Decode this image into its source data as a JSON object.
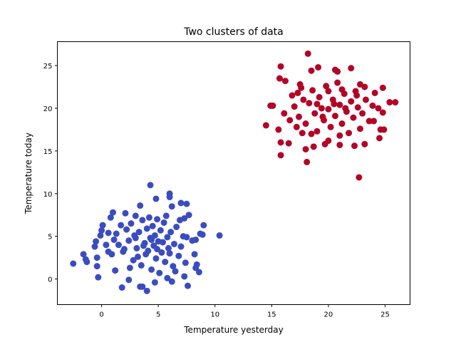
{
  "chart_data": {
    "type": "scatter",
    "title": "Two clusters of data",
    "xlabel": "Temperature yesterday",
    "ylabel": "Temperature today",
    "xlim": [
      -3.9,
      27.2
    ],
    "ylim": [
      -3.0,
      27.8
    ],
    "xticks": [
      0,
      5,
      10,
      15,
      20,
      25
    ],
    "yticks": [
      0,
      5,
      10,
      15,
      20,
      25
    ],
    "grid": false,
    "series": [
      {
        "color": "#3b4cc0",
        "points": [
          [
            -2.5,
            1.8
          ],
          [
            -1.6,
            2.9
          ],
          [
            -1.3,
            2.0
          ],
          [
            -1.4,
            2.3
          ],
          [
            -0.3,
            0.2
          ],
          [
            -0.4,
            1.5
          ],
          [
            -0.4,
            2.5
          ],
          [
            -0.6,
            3.8
          ],
          [
            -0.5,
            4.4
          ],
          [
            0.1,
            6.3
          ],
          [
            0.0,
            5.7
          ],
          [
            -0.1,
            5.1
          ],
          [
            0.6,
            3.2
          ],
          [
            0.9,
            2.9
          ],
          [
            1.0,
            7.8
          ],
          [
            0.8,
            7.2
          ],
          [
            1.2,
            1.0
          ],
          [
            1.8,
            -1.0
          ],
          [
            2.1,
            7.7
          ],
          [
            2.4,
            -0.1
          ],
          [
            3.4,
            8.6
          ],
          [
            4.3,
            11.0
          ],
          [
            4.8,
            9.4
          ],
          [
            6.0,
            10.0
          ],
          [
            6.0,
            9.6
          ],
          [
            6.2,
            8.5
          ],
          [
            7.0,
            8.9
          ],
          [
            7.5,
            8.8
          ],
          [
            7.7,
            7.5
          ],
          [
            7.3,
            7.1
          ],
          [
            6.9,
            6.9
          ],
          [
            9.0,
            6.3
          ],
          [
            8.9,
            5.2
          ],
          [
            8.7,
            5.3
          ],
          [
            10.4,
            5.1
          ],
          [
            8.3,
            4.6
          ],
          [
            8.0,
            4.5
          ],
          [
            7.5,
            4.9
          ],
          [
            8.2,
            2.9
          ],
          [
            8.4,
            1.7
          ],
          [
            8.3,
            1.3
          ],
          [
            8.6,
            0.8
          ],
          [
            7.3,
            0.3
          ],
          [
            7.6,
            -0.8
          ],
          [
            6.2,
            -0.3
          ],
          [
            4.0,
            -1.4
          ],
          [
            3.6,
            -0.9
          ],
          [
            3.4,
            -0.9
          ],
          [
            4.7,
            -0.4
          ],
          [
            5.8,
            0.1
          ],
          [
            1.3,
            5.3
          ],
          [
            1.5,
            4.0
          ],
          [
            1.9,
            3.2
          ],
          [
            2.2,
            5.8
          ],
          [
            2.6,
            6.5
          ],
          [
            2.8,
            2.2
          ],
          [
            3.0,
            4.8
          ],
          [
            3.1,
            3.6
          ],
          [
            3.3,
            5.5
          ],
          [
            3.5,
            1.6
          ],
          [
            3.6,
            6.9
          ],
          [
            3.8,
            4.2
          ],
          [
            3.9,
            2.9
          ],
          [
            4.0,
            5.9
          ],
          [
            4.1,
            3.3
          ],
          [
            4.2,
            7.2
          ],
          [
            4.3,
            4.8
          ],
          [
            4.4,
            1.1
          ],
          [
            4.5,
            6.2
          ],
          [
            4.6,
            3.9
          ],
          [
            4.7,
            5.1
          ],
          [
            4.8,
            2.4
          ],
          [
            4.9,
            7.0
          ],
          [
            5.0,
            4.4
          ],
          [
            5.1,
            0.7
          ],
          [
            5.2,
            5.7
          ],
          [
            5.3,
            3.1
          ],
          [
            5.5,
            6.6
          ],
          [
            5.6,
            2.0
          ],
          [
            5.8,
            4.9
          ],
          [
            5.9,
            3.6
          ],
          [
            6.1,
            5.5
          ],
          [
            6.3,
            1.5
          ],
          [
            6.4,
            4.1
          ],
          [
            6.6,
            6.1
          ],
          [
            6.8,
            2.7
          ],
          [
            7.0,
            3.8
          ],
          [
            7.2,
            5.0
          ],
          [
            7.4,
            1.9
          ],
          [
            2.0,
            3.5
          ],
          [
            2.4,
            4.5
          ],
          [
            2.9,
            5.1
          ],
          [
            3.2,
            2.6
          ],
          [
            3.7,
            3.9
          ],
          [
            4.4,
            4.6
          ],
          [
            4.9,
            3.5
          ],
          [
            5.4,
            4.3
          ],
          [
            6.0,
            3.0
          ],
          [
            2.5,
            1.3
          ],
          [
            1.7,
            6.3
          ],
          [
            3.0,
            7.4
          ],
          [
            5.7,
            7.4
          ],
          [
            6.5,
            0.9
          ],
          [
            1.1,
            4.6
          ],
          [
            0.4,
            4.0
          ],
          [
            0.6,
            5.4
          ]
        ]
      },
      {
        "color": "#b40426",
        "points": [
          [
            18.2,
            26.4
          ],
          [
            15.8,
            24.9
          ],
          [
            15.7,
            23.5
          ],
          [
            16.2,
            23.2
          ],
          [
            14.5,
            18.0
          ],
          [
            14.9,
            20.3
          ],
          [
            15.1,
            20.3
          ],
          [
            15.6,
            17.5
          ],
          [
            15.8,
            16.0
          ],
          [
            15.8,
            14.5
          ],
          [
            16.5,
            15.9
          ],
          [
            18.0,
            15.2
          ],
          [
            18.1,
            13.7
          ],
          [
            17.7,
            17.1
          ],
          [
            17.3,
            21.8
          ],
          [
            17.5,
            22.8
          ],
          [
            18.5,
            24.4
          ],
          [
            19.1,
            24.8
          ],
          [
            20.6,
            24.5
          ],
          [
            20.8,
            24.3
          ],
          [
            21.2,
            22.2
          ],
          [
            22.0,
            24.7
          ],
          [
            22.8,
            22.8
          ],
          [
            23.2,
            22.5
          ],
          [
            24.1,
            21.8
          ],
          [
            24.8,
            22.4
          ],
          [
            25.4,
            20.7
          ],
          [
            25.9,
            20.7
          ],
          [
            24.4,
            20.0
          ],
          [
            24.8,
            19.5
          ],
          [
            24.6,
            17.5
          ],
          [
            24.9,
            17.5
          ],
          [
            24.5,
            16.5
          ],
          [
            23.2,
            15.8
          ],
          [
            22.7,
            11.9
          ],
          [
            22.3,
            15.6
          ],
          [
            21.0,
            15.7
          ],
          [
            20.0,
            16.2
          ],
          [
            19.7,
            15.8
          ],
          [
            18.7,
            15.5
          ],
          [
            16.6,
            18.6
          ],
          [
            17.0,
            20.2
          ],
          [
            17.4,
            19.0
          ],
          [
            17.8,
            21.0
          ],
          [
            18.0,
            18.2
          ],
          [
            18.3,
            20.6
          ],
          [
            18.6,
            22.1
          ],
          [
            18.8,
            19.4
          ],
          [
            19.0,
            17.3
          ],
          [
            19.2,
            21.3
          ],
          [
            19.4,
            20.0
          ],
          [
            19.6,
            18.6
          ],
          [
            19.8,
            22.6
          ],
          [
            20.0,
            19.9
          ],
          [
            20.2,
            17.8
          ],
          [
            20.4,
            21.0
          ],
          [
            20.6,
            19.1
          ],
          [
            20.8,
            23.0
          ],
          [
            21.0,
            20.4
          ],
          [
            21.2,
            18.2
          ],
          [
            21.4,
            21.7
          ],
          [
            21.6,
            19.6
          ],
          [
            21.8,
            17.1
          ],
          [
            22.0,
            20.8
          ],
          [
            22.2,
            18.9
          ],
          [
            22.4,
            22.0
          ],
          [
            22.6,
            20.1
          ],
          [
            22.8,
            17.6
          ],
          [
            23.0,
            19.4
          ],
          [
            23.3,
            21.0
          ],
          [
            23.6,
            18.5
          ],
          [
            23.9,
            20.3
          ],
          [
            16.8,
            21.5
          ],
          [
            17.2,
            17.8
          ],
          [
            19.0,
            20.5
          ],
          [
            19.5,
            19.0
          ],
          [
            20.5,
            20.5
          ],
          [
            21.5,
            20.0
          ],
          [
            20.0,
            22.0
          ],
          [
            18.5,
            17.0
          ],
          [
            22.5,
            21.5
          ],
          [
            21.0,
            16.8
          ],
          [
            17.6,
            22.4
          ],
          [
            16.1,
            19.4
          ],
          [
            24.0,
            18.5
          ]
        ]
      }
    ]
  }
}
